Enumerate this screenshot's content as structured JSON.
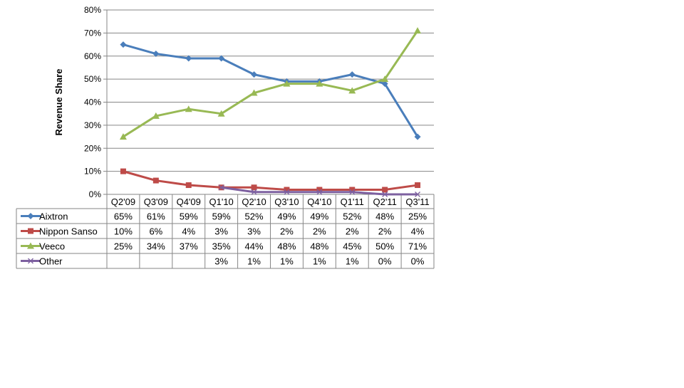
{
  "chart_data": {
    "type": "line",
    "title": "",
    "xlabel": "",
    "ylabel": "Revenue Share",
    "ylim": [
      0,
      80
    ],
    "y_unit": "%",
    "y_ticks": [
      "0%",
      "10%",
      "20%",
      "30%",
      "40%",
      "50%",
      "60%",
      "70%",
      "80%"
    ],
    "grid": "horizontal",
    "legend": "data-table",
    "categories": [
      "Q2'09",
      "Q3'09",
      "Q4'09",
      "Q1'10",
      "Q2'10",
      "Q3'10",
      "Q4'10",
      "Q1'11",
      "Q2'11",
      "Q3'11"
    ],
    "series": [
      {
        "name": "Aixtron",
        "color": "#4a7ebb",
        "marker": "diamond",
        "values": [
          65,
          61,
          59,
          59,
          52,
          49,
          49,
          52,
          48,
          25
        ],
        "labels": [
          "65%",
          "61%",
          "59%",
          "59%",
          "52%",
          "49%",
          "49%",
          "52%",
          "48%",
          "25%"
        ]
      },
      {
        "name": "Nippon Sanso",
        "color": "#be4b48",
        "marker": "square",
        "values": [
          10,
          6,
          4,
          3,
          3,
          2,
          2,
          2,
          2,
          4
        ],
        "labels": [
          "10%",
          "6%",
          "4%",
          "3%",
          "3%",
          "2%",
          "2%",
          "2%",
          "2%",
          "4%"
        ]
      },
      {
        "name": "Veeco",
        "color": "#98b954",
        "marker": "triangle",
        "values": [
          25,
          34,
          37,
          35,
          44,
          48,
          48,
          45,
          50,
          71
        ],
        "labels": [
          "25%",
          "34%",
          "37%",
          "35%",
          "44%",
          "48%",
          "48%",
          "45%",
          "50%",
          "71%"
        ]
      },
      {
        "name": "Other",
        "color": "#7d60a0",
        "marker": "x",
        "values": [
          null,
          null,
          null,
          3,
          1,
          1,
          1,
          1,
          0,
          0
        ],
        "labels": [
          "",
          "",
          "",
          "3%",
          "1%",
          "1%",
          "1%",
          "1%",
          "0%",
          "0%"
        ]
      }
    ]
  }
}
